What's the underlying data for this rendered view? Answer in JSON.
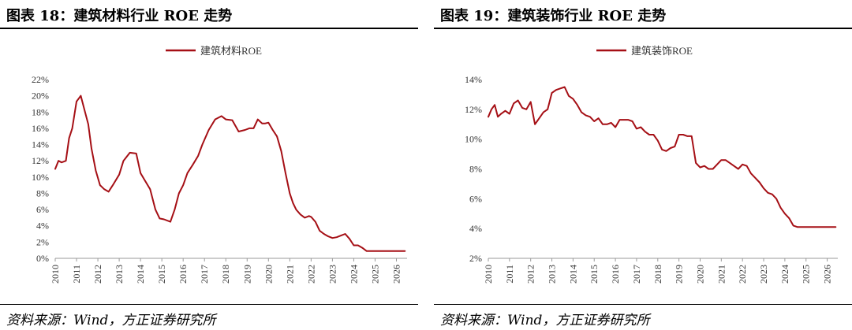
{
  "charts": [
    {
      "figure_title": "图表 18：建筑材料行业 ROE 走势",
      "source": "资料来源：Wind，方正证券研究所"
    },
    {
      "figure_title": "图表 19：建筑装饰行业 ROE 走势",
      "source": "资料来源：Wind，方正证券研究所"
    }
  ],
  "chart_data": [
    {
      "type": "line",
      "title": "图表 18：建筑材料行业 ROE 走势",
      "xlabel": "",
      "ylabel": "",
      "x_ticks": [
        "2010",
        "2011",
        "2012",
        "2013",
        "2014",
        "2015",
        "2016",
        "2017",
        "2018",
        "2019",
        "2020",
        "2021",
        "2022",
        "2023",
        "2024",
        "2025",
        "2026"
      ],
      "y_ticks": [
        "0%",
        "2%",
        "4%",
        "6%",
        "8%",
        "10%",
        "12%",
        "14%",
        "16%",
        "18%",
        "20%",
        "22%"
      ],
      "ylim": [
        0,
        22
      ],
      "xlim": [
        2010,
        2026.5
      ],
      "grid": false,
      "legend_position": "top-center",
      "color": "#A50F15",
      "series": [
        {
          "name": "建筑材料ROE",
          "x": [
            2010.0,
            2010.15,
            2010.3,
            2010.5,
            2010.65,
            2010.8,
            2011.0,
            2011.2,
            2011.4,
            2011.55,
            2011.7,
            2011.9,
            2012.1,
            2012.3,
            2012.5,
            2012.7,
            2013.0,
            2013.2,
            2013.5,
            2013.8,
            2014.0,
            2014.2,
            2014.45,
            2014.7,
            2014.9,
            2015.1,
            2015.4,
            2015.6,
            2015.8,
            2016.0,
            2016.2,
            2016.45,
            2016.7,
            2016.9,
            2017.2,
            2017.5,
            2017.8,
            2018.0,
            2018.3,
            2018.6,
            2018.9,
            2019.1,
            2019.3,
            2019.5,
            2019.7,
            2019.85,
            2020.0,
            2020.2,
            2020.4,
            2020.6,
            2020.8,
            2021.0,
            2021.15,
            2021.3,
            2021.5,
            2021.7,
            2021.9,
            2022.0,
            2022.2,
            2022.4,
            2022.6,
            2022.8,
            2023.0,
            2023.2,
            2023.4,
            2023.6,
            2023.8,
            2024.0,
            2024.2,
            2024.4,
            2024.6,
            2024.8,
            2025.0,
            2025.2,
            2025.4,
            2025.6,
            2025.8,
            2026.0,
            2026.2,
            2026.4
          ],
          "values": [
            11.0,
            12.0,
            11.8,
            12.0,
            14.8,
            16.0,
            19.3,
            20.0,
            18.0,
            16.5,
            13.5,
            10.8,
            9.0,
            8.5,
            8.2,
            9.0,
            10.3,
            12.0,
            13.0,
            12.9,
            10.5,
            9.6,
            8.5,
            6.0,
            4.9,
            4.8,
            4.5,
            6.0,
            8.0,
            9.0,
            10.5,
            11.5,
            12.6,
            14.0,
            15.8,
            17.1,
            17.5,
            17.1,
            17.0,
            15.6,
            15.8,
            16.0,
            16.0,
            17.1,
            16.6,
            16.6,
            16.7,
            15.8,
            15.0,
            13.2,
            10.5,
            8.0,
            6.8,
            6.0,
            5.4,
            5.0,
            5.2,
            5.1,
            4.5,
            3.4,
            3.0,
            2.7,
            2.5,
            2.6,
            2.8,
            3.0,
            2.4,
            1.6,
            1.6,
            1.3,
            0.9,
            0.9,
            0.9,
            0.9,
            0.9,
            0.9,
            0.9,
            0.9,
            0.9,
            0.9
          ]
        }
      ]
    },
    {
      "type": "line",
      "title": "图表 19：建筑装饰行业 ROE 走势",
      "xlabel": "",
      "ylabel": "",
      "x_ticks": [
        "2010",
        "2011",
        "2012",
        "2013",
        "2014",
        "2015",
        "2016",
        "2017",
        "2018",
        "2019",
        "2020",
        "2021",
        "2022",
        "2023",
        "2024",
        "2025",
        "2026"
      ],
      "y_ticks": [
        "2%",
        "4%",
        "6%",
        "8%",
        "10%",
        "12%",
        "14%"
      ],
      "ylim": [
        2,
        14
      ],
      "xlim": [
        2010,
        2026.5
      ],
      "grid": false,
      "legend_position": "top-center",
      "color": "#A50F15",
      "series": [
        {
          "name": "建筑装饰ROE",
          "x": [
            2010.0,
            2010.15,
            2010.3,
            2010.45,
            2010.6,
            2010.8,
            2011.0,
            2011.2,
            2011.4,
            2011.6,
            2011.8,
            2012.0,
            2012.2,
            2012.3,
            2012.45,
            2012.6,
            2012.8,
            2013.0,
            2013.2,
            2013.4,
            2013.6,
            2013.8,
            2014.0,
            2014.2,
            2014.4,
            2014.6,
            2014.8,
            2015.0,
            2015.2,
            2015.4,
            2015.6,
            2015.8,
            2016.0,
            2016.2,
            2016.4,
            2016.6,
            2016.8,
            2017.0,
            2017.2,
            2017.4,
            2017.6,
            2017.8,
            2018.0,
            2018.2,
            2018.4,
            2018.6,
            2018.8,
            2019.0,
            2019.2,
            2019.4,
            2019.6,
            2019.8,
            2020.0,
            2020.2,
            2020.4,
            2020.6,
            2020.8,
            2021.0,
            2021.2,
            2021.4,
            2021.6,
            2021.8,
            2022.0,
            2022.2,
            2022.4,
            2022.6,
            2022.8,
            2023.0,
            2023.2,
            2023.4,
            2023.6,
            2023.8,
            2024.0,
            2024.2,
            2024.4,
            2024.6,
            2024.8,
            2025.0,
            2025.2,
            2025.4,
            2025.6,
            2025.8,
            2026.0,
            2026.2,
            2026.4
          ],
          "values": [
            11.5,
            12.0,
            12.3,
            11.5,
            11.7,
            11.9,
            11.7,
            12.4,
            12.6,
            12.1,
            12.0,
            12.5,
            11.0,
            11.2,
            11.5,
            11.8,
            12.0,
            13.1,
            13.3,
            13.4,
            13.5,
            12.9,
            12.7,
            12.3,
            11.8,
            11.6,
            11.5,
            11.2,
            11.4,
            11.0,
            11.0,
            11.1,
            10.8,
            11.3,
            11.3,
            11.3,
            11.2,
            10.7,
            10.8,
            10.5,
            10.3,
            10.3,
            9.9,
            9.3,
            9.2,
            9.4,
            9.5,
            10.3,
            10.3,
            10.2,
            10.2,
            8.4,
            8.1,
            8.2,
            8.0,
            8.0,
            8.3,
            8.6,
            8.6,
            8.4,
            8.2,
            8.0,
            8.3,
            8.2,
            7.7,
            7.4,
            7.1,
            6.7,
            6.4,
            6.3,
            6.0,
            5.4,
            5.0,
            4.7,
            4.2,
            4.1,
            4.1,
            4.1,
            4.1,
            4.1,
            4.1,
            4.1,
            4.1,
            4.1,
            4.1
          ]
        }
      ]
    }
  ]
}
